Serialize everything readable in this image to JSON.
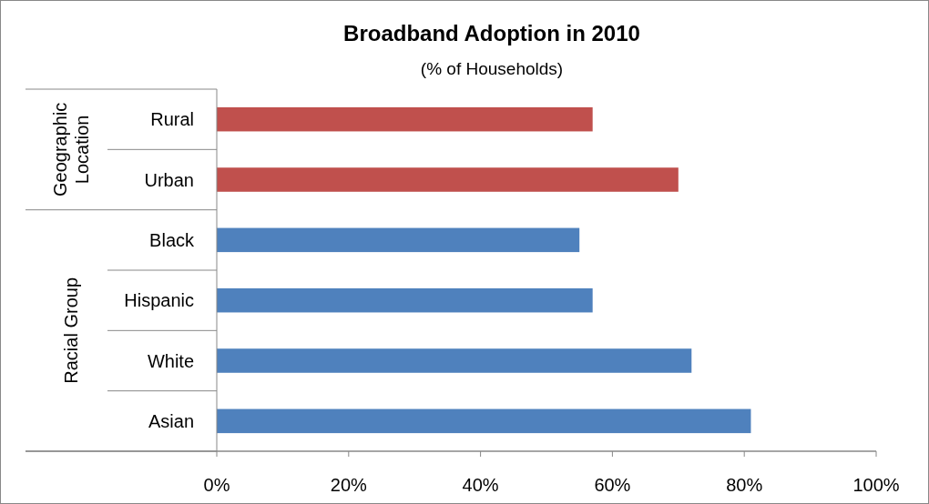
{
  "chart_data": {
    "type": "bar",
    "orientation": "horizontal",
    "title": "Broadband Adoption in 2010",
    "subtitle": "(% of Households)",
    "categories": [
      "Rural",
      "Urban",
      "Black",
      "Hispanic",
      "White",
      "Asian"
    ],
    "values": [
      57,
      70,
      55,
      57,
      72,
      81
    ],
    "colors": [
      "#c0504d",
      "#c0504d",
      "#4f81bd",
      "#4f81bd",
      "#4f81bd",
      "#4f81bd"
    ],
    "xlim": [
      0,
      100
    ],
    "xticks": [
      {
        "value": 0,
        "label": "0%"
      },
      {
        "value": 20,
        "label": "20%"
      },
      {
        "value": 40,
        "label": "40%"
      },
      {
        "value": 60,
        "label": "60%"
      },
      {
        "value": 80,
        "label": "80%"
      },
      {
        "value": 100,
        "label": "100%"
      }
    ],
    "annotations": [
      "Geographic Location",
      "Racial Group"
    ],
    "grid": false
  }
}
